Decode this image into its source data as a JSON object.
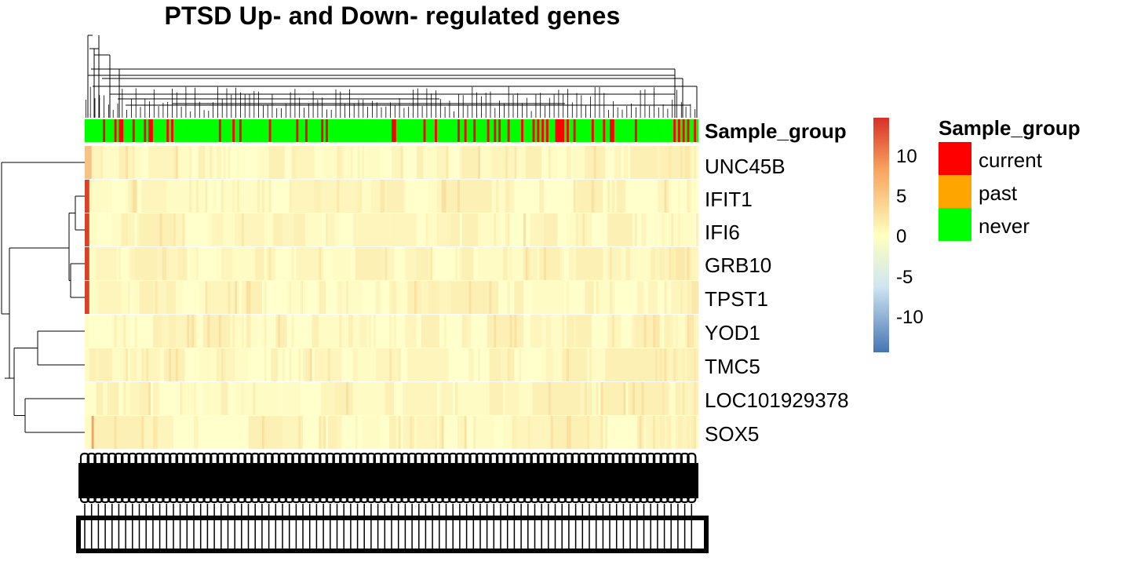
{
  "chart_data": {
    "type": "heatmap",
    "title": "PTSD Up- and Down- regulated genes",
    "rows": [
      "UNC45B",
      "IFIT1",
      "IFI6",
      "GRB10",
      "TPST1",
      "YOD1",
      "TMC5",
      "LOC101929378",
      "SOX5"
    ],
    "column_annotation": {
      "name": "Sample_group",
      "levels": [
        {
          "label": "current",
          "color": "#FF0000"
        },
        {
          "label": "past",
          "color": "#FFA500"
        },
        {
          "label": "never",
          "color": "#00FF00"
        }
      ]
    },
    "color_scale": {
      "ticks": [
        "10",
        "5",
        "0",
        "-5",
        "-10"
      ],
      "tick_values": [
        10,
        5,
        0,
        -5,
        -10
      ],
      "range": [
        -14,
        14
      ],
      "colors": {
        "low": "#4575B4",
        "mid": "#FFFFBF",
        "high": "#D73027"
      }
    },
    "row_dendrogram": true,
    "column_dendrogram": true,
    "column_count_approx": 270
  }
}
